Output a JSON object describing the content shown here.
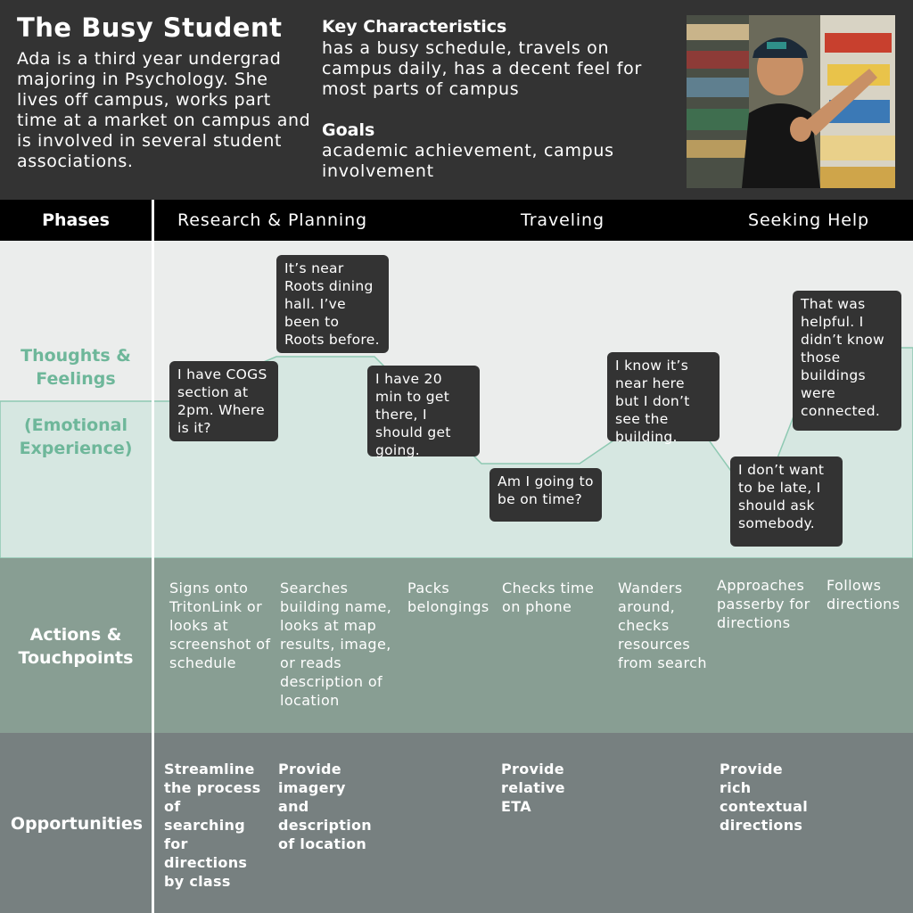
{
  "persona": {
    "title": "The Busy Student",
    "bio": "Ada is a third year undergrad majoring in Psychology. She lives off campus, works part time at a market on campus and is involved in several student associations.",
    "characteristics_heading": "Key Characteristics",
    "characteristics": "has a busy schedule, travels on campus daily, has a decent feel for most parts of campus",
    "goals_heading": "Goals",
    "goals": "academic achievement, campus involvement"
  },
  "phases": {
    "label": "Phases",
    "items": [
      "Research & Planning",
      "Traveling",
      "Seeking Help"
    ]
  },
  "thoughts": {
    "label": "Thoughts & Feelings",
    "sublabel": "(Emotional Experience)",
    "bubbles": [
      "I have COGS section at 2pm. Where is it?",
      "It’s near Roots dining hall. I’ve been to Roots before.",
      "I have 20 min to get there, I should get going.",
      "Am I going to be on time?",
      "I know it’s near here but I don’t see the building.",
      "I don’t want to be late, I should ask somebody.",
      "That was helpful. I didn’t know those buildings were connected."
    ]
  },
  "actions": {
    "label": "Actions & Touchpoints",
    "items": [
      "Signs onto TritonLink or looks at screenshot of schedule",
      "Searches building name, looks at map results, image, or reads description of location",
      "Packs belongings",
      "Checks time on phone",
      "Wanders around, checks resources from search",
      "Approaches passerby for directions",
      "Follows directions"
    ]
  },
  "opportunities": {
    "label": "Opportunities",
    "items": [
      "Streamline the process of searching for directions by class",
      "Provide imagery and description of location",
      "Provide relative ETA",
      "Provide rich contextual directions"
    ]
  },
  "colors": {
    "header_bg": "#333333",
    "phase_bar": "#000000",
    "thoughts_bg": "#ebedec",
    "emotion_fill": "#d6e7e1",
    "emotion_line": "#8ec9b2",
    "accent_green": "#6eb79a",
    "actions_bg": "#889e93",
    "opportunities_bg": "#778080"
  }
}
